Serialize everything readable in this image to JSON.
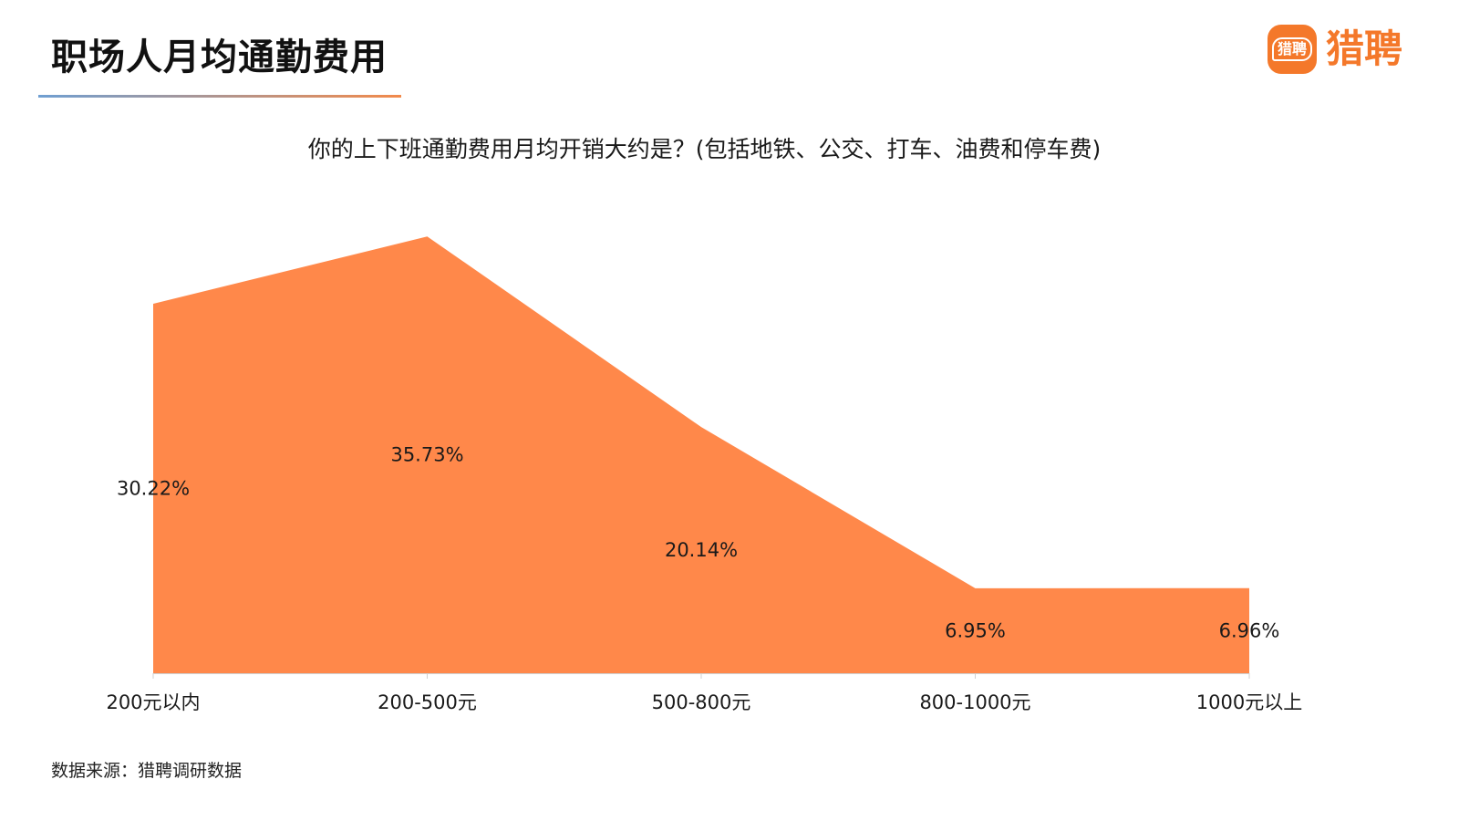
{
  "header": {
    "title": "职场人月均通勤费用"
  },
  "brand": {
    "badge_text": "猎聘",
    "name": "猎聘",
    "color": "#F4782A"
  },
  "chart_data": {
    "type": "area",
    "title": "你的上下班通勤费用月均开销大约是？(包括地铁、公交、打车、油费和停车费)",
    "categories": [
      "200元以内",
      "200-500元",
      "500-800元",
      "800-1000元",
      "1000元以上"
    ],
    "values": [
      30.22,
      35.73,
      20.14,
      6.95,
      6.96
    ],
    "value_labels": [
      "30.22%",
      "35.73%",
      "20.14%",
      "6.95%",
      "6.96%"
    ],
    "unit": "%",
    "ylim": [
      0,
      40
    ],
    "color": "#FF884A",
    "grid": false,
    "legend": "none"
  },
  "footer": {
    "source": "数据来源：猎聘调研数据"
  }
}
